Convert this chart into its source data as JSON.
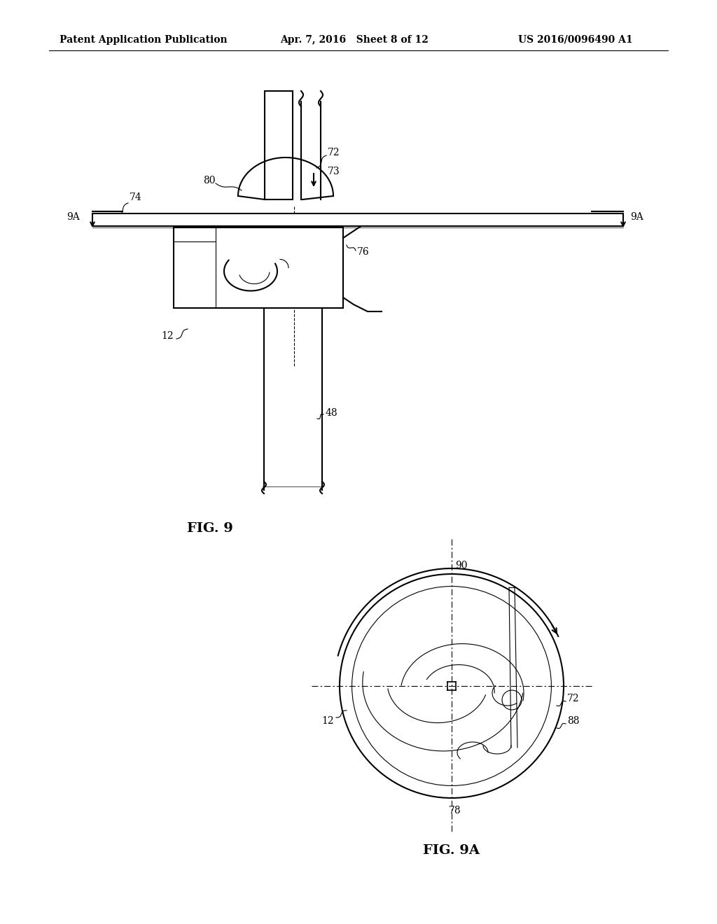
{
  "bg_color": "#ffffff",
  "line_color": "#000000",
  "header_left": "Patent Application Publication",
  "header_mid": "Apr. 7, 2016   Sheet 8 of 12",
  "header_right": "US 2016/0096490 A1",
  "fig9_label": "FIG. 9",
  "fig9a_label": "FIG. 9A"
}
